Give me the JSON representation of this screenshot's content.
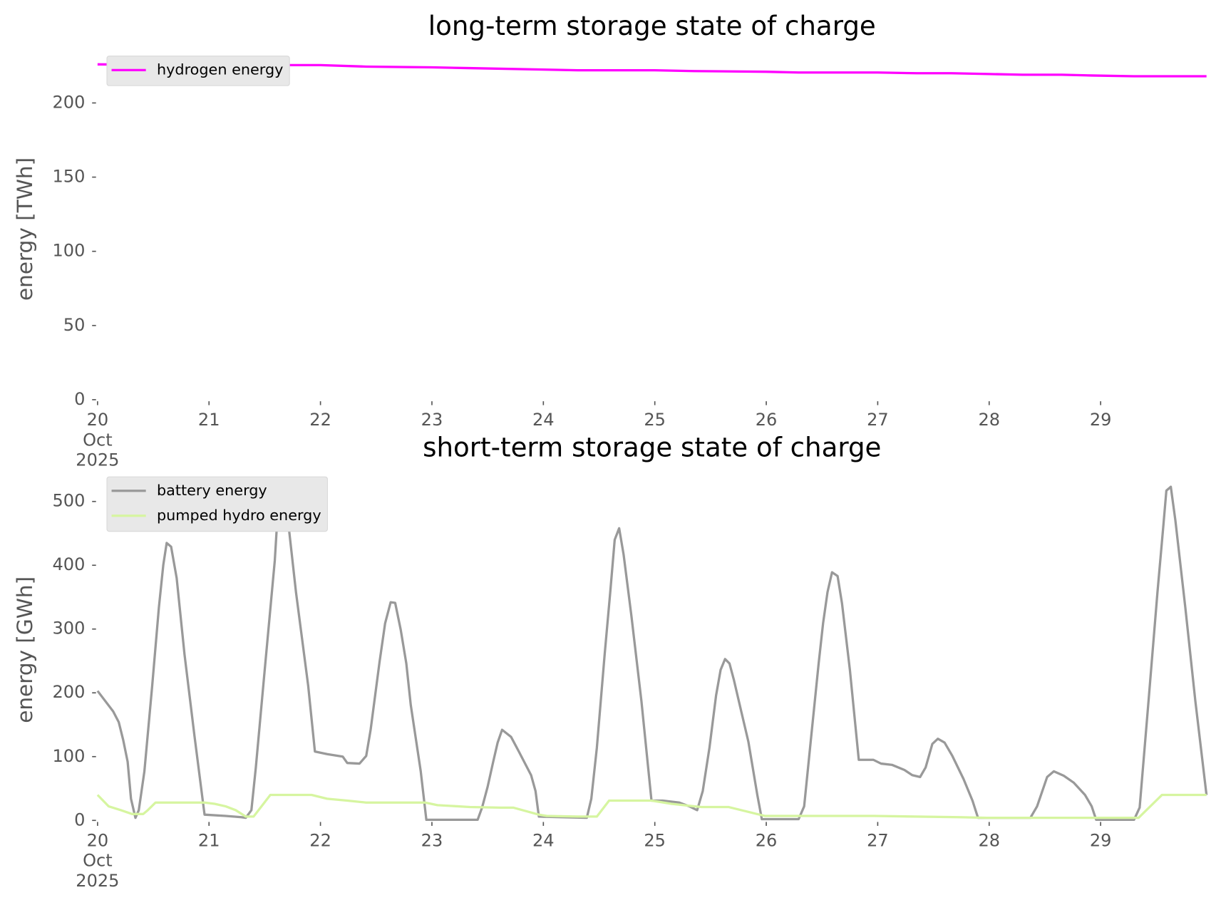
{
  "chart_data": [
    {
      "type": "line",
      "title": "long-term storage state of charge",
      "ylabel": "energy [TWh]",
      "xlim": [
        20,
        29.95
      ],
      "xticks": [
        {
          "value": 20,
          "label": "20\nOct\n2025"
        },
        21,
        22,
        23,
        24,
        25,
        26,
        27,
        28,
        29
      ],
      "ylim": [
        0,
        230
      ],
      "yticks": [
        0,
        50,
        100,
        150,
        200
      ],
      "legend": "upper left",
      "series": [
        {
          "name": "hydrogen energy",
          "color": "#ff00ff",
          "x": [
            20,
            21,
            22,
            22.41,
            23,
            23.33,
            24,
            24.31,
            25,
            25.35,
            26,
            26.29,
            27,
            27.35,
            27.66,
            28,
            28.3,
            28.65,
            28.92,
            29.3,
            29.95
          ],
          "values": [
            226,
            225.5,
            225.5,
            224.5,
            224,
            223.5,
            222.5,
            222,
            222,
            221.5,
            221,
            220.5,
            220.5,
            220,
            220,
            219.5,
            219,
            219,
            218.5,
            218,
            218
          ]
        }
      ]
    },
    {
      "type": "line",
      "title": "short-term storage state of charge",
      "ylabel": "energy [GWh]",
      "xlim": [
        20,
        29.95
      ],
      "xticks": [
        {
          "value": 20,
          "label": "20\nOct\n2025"
        },
        21,
        22,
        23,
        24,
        25,
        26,
        27,
        28,
        29
      ],
      "ylim": [
        0,
        535
      ],
      "yticks": [
        0,
        100,
        200,
        300,
        400,
        500
      ],
      "legend": "upper left",
      "series": [
        {
          "name": "battery energy",
          "color": "#999999",
          "x": [
            20,
            20.14,
            20.19,
            20.23,
            20.27,
            20.3,
            20.34,
            20.37,
            20.42,
            20.49,
            20.55,
            20.59,
            20.62,
            20.66,
            20.71,
            20.78,
            20.87,
            20.96,
            21.15,
            21.29,
            21.33,
            21.38,
            21.42,
            21.5,
            21.59,
            21.62,
            21.66,
            21.71,
            21.78,
            21.89,
            21.95,
            22.06,
            22.2,
            22.24,
            22.35,
            22.41,
            22.45,
            22.53,
            22.58,
            22.63,
            22.67,
            22.72,
            22.77,
            22.81,
            22.9,
            22.95,
            23.41,
            23.45,
            23.5,
            23.55,
            23.59,
            23.63,
            23.71,
            23.78,
            23.89,
            23.93,
            23.96,
            24.39,
            24.43,
            24.48,
            24.55,
            24.6,
            24.64,
            24.68,
            24.72,
            24.79,
            24.88,
            24.97,
            25.07,
            25.22,
            25.31,
            25.38,
            25.43,
            25.49,
            25.55,
            25.59,
            25.63,
            25.67,
            25.71,
            25.77,
            25.84,
            25.92,
            25.96,
            26.29,
            26.34,
            26.4,
            26.47,
            26.51,
            26.55,
            26.59,
            26.64,
            26.68,
            26.75,
            26.83,
            26.96,
            27.03,
            27.13,
            27.24,
            27.31,
            27.38,
            27.43,
            27.49,
            27.54,
            27.6,
            27.67,
            27.77,
            27.85,
            27.9,
            28.37,
            28.43,
            28.52,
            28.58,
            28.67,
            28.76,
            28.86,
            28.92,
            28.96,
            29.3,
            29.35,
            29.43,
            29.51,
            29.56,
            29.59,
            29.63,
            29.67,
            29.76,
            29.85,
            29.95
          ],
          "values": [
            203,
            171,
            154,
            126,
            92,
            34,
            4,
            16,
            77,
            211,
            334,
            401,
            435,
            429,
            380,
            260,
            132,
            9,
            7,
            5,
            4,
            16,
            83,
            236,
            407,
            493,
            526,
            468,
            358,
            211,
            108,
            104,
            100,
            90,
            89,
            101,
            142,
            248,
            309,
            342,
            341,
            299,
            246,
            181,
            77,
            1,
            1,
            20,
            53,
            92,
            122,
            142,
            131,
            108,
            71,
            46,
            6,
            4,
            34,
            114,
            260,
            358,
            440,
            458,
            417,
            321,
            187,
            31,
            31,
            28,
            22,
            16,
            46,
            114,
            196,
            236,
            253,
            246,
            220,
            175,
            123,
            40,
            2,
            2,
            22,
            126,
            246,
            309,
            358,
            389,
            383,
            340,
            236,
            95,
            95,
            89,
            87,
            79,
            71,
            68,
            83,
            120,
            128,
            122,
            101,
            65,
            31,
            4,
            4,
            22,
            68,
            77,
            70,
            59,
            40,
            22,
            1,
            1,
            20,
            187,
            358,
            456,
            517,
            523,
            471,
            334,
            187,
            40
          ]
        },
        {
          "name": "pumped hydro energy",
          "color": "#d6f5a0",
          "x": [
            20,
            20.1,
            20.21,
            20.31,
            20.41,
            20.45,
            20.52,
            20.96,
            21.05,
            21.15,
            21.24,
            21.33,
            21.4,
            21.55,
            21.92,
            22.06,
            22.24,
            22.41,
            22.94,
            23.05,
            23.34,
            23.62,
            23.73,
            23.96,
            24.03,
            24.31,
            24.48,
            24.59,
            24.97,
            25.15,
            25.31,
            25.42,
            25.66,
            25.94,
            25.99,
            26.97,
            27.73,
            27.98,
            29.34,
            29.55,
            29.95
          ],
          "values": [
            40,
            22,
            16,
            10,
            10,
            16,
            28,
            28,
            26,
            22,
            16,
            6,
            6,
            40,
            40,
            34,
            31,
            28,
            28,
            24,
            21,
            20,
            20,
            9,
            7,
            6,
            6,
            31,
            31,
            26,
            23,
            21,
            21,
            9,
            7,
            7,
            5,
            4,
            4,
            40,
            40
          ]
        }
      ]
    }
  ]
}
